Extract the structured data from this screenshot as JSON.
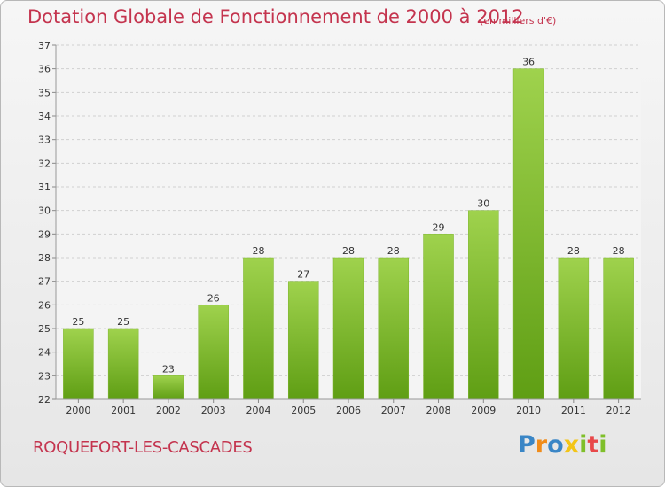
{
  "chart_data": {
    "type": "bar",
    "title": "Dotation Globale de Fonctionnement de 2000 à 2012",
    "unit_note": "(en milliers d'€)",
    "categories": [
      "2000",
      "2001",
      "2002",
      "2003",
      "2004",
      "2005",
      "2006",
      "2007",
      "2008",
      "2009",
      "2010",
      "2011",
      "2012"
    ],
    "values": [
      25,
      25,
      23,
      26,
      28,
      27,
      28,
      28,
      29,
      30,
      36,
      28,
      28
    ],
    "ylim": [
      22,
      37
    ],
    "yticks": [
      22,
      23,
      24,
      25,
      26,
      27,
      28,
      29,
      30,
      31,
      32,
      33,
      34,
      35,
      36,
      37
    ],
    "xlabel": "",
    "ylabel": "",
    "grid": true
  },
  "footer": {
    "commune": "ROQUEFORT-LES-CASCADES",
    "logo_letters": [
      "P",
      "r",
      "o",
      "x",
      "i",
      "t",
      "i"
    ]
  },
  "colors": {
    "title": "#c4344e",
    "bar_top": "#9fd24d",
    "bar_bottom": "#5f9e14",
    "grid": "#cfcfcf"
  }
}
